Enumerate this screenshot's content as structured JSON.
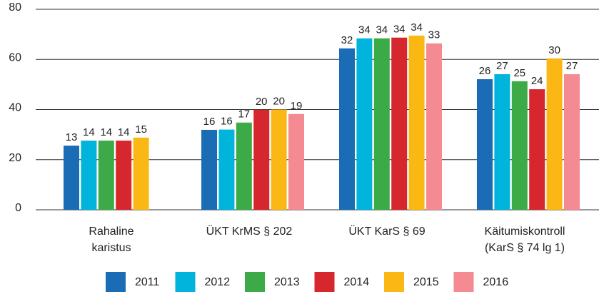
{
  "chart_data": {
    "type": "bar",
    "categories": [
      "Rahaline\nkaristus",
      "ÜKT KrMS § 202",
      "ÜKT KarS § 69",
      "Käitumiskontroll\n(KarS § 74 lg 1)"
    ],
    "series": [
      {
        "name": "2011",
        "color": "#1a6db5",
        "values": [
          25.6,
          31.9,
          64.4,
          52.1
        ],
        "value_labels": [
          "13",
          "16",
          "32",
          "26"
        ]
      },
      {
        "name": "2012",
        "color": "#00b4dc",
        "values": [
          27.6,
          32,
          68.4,
          54.1
        ],
        "value_labels": [
          "14",
          "16",
          "34",
          "27"
        ]
      },
      {
        "name": "2013",
        "color": "#3daa48",
        "values": [
          27.6,
          34.8,
          68.4,
          51.3
        ],
        "value_labels": [
          "14",
          "17",
          "34",
          "25"
        ]
      },
      {
        "name": "2014",
        "color": "#d7272e",
        "values": [
          27.6,
          39.9,
          68.7,
          48.1
        ],
        "value_labels": [
          "14",
          "20",
          "34",
          "24"
        ]
      },
      {
        "name": "2015",
        "color": "#fbb814",
        "values": [
          28.8,
          40,
          69.5,
          60.4
        ],
        "value_labels": [
          "15",
          "20",
          "34",
          "30"
        ]
      },
      {
        "name": "2016",
        "color": "#f48a92",
        "values": [
          null,
          38.2,
          66.4,
          54.1
        ],
        "value_labels": [
          null,
          "19",
          "33",
          "27"
        ]
      }
    ],
    "ylim": [
      0,
      80
    ],
    "yticks": [
      0,
      20,
      40,
      60,
      80
    ],
    "grid": true,
    "legend": "bottom"
  }
}
